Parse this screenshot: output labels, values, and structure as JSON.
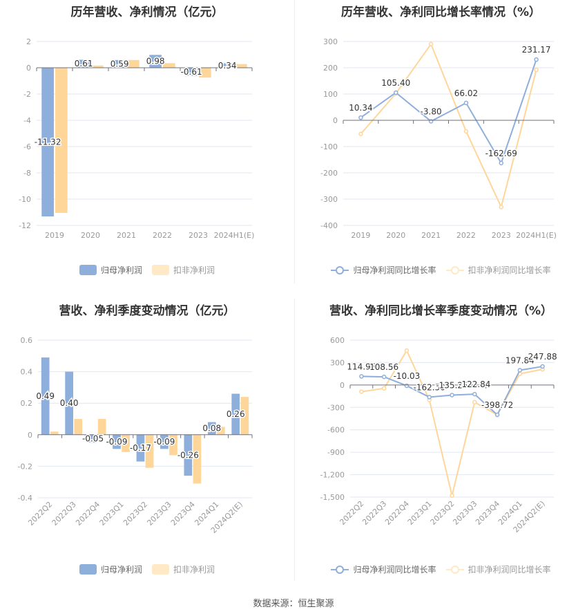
{
  "colors": {
    "series1": "#8eaedc",
    "series2": "#ffd699",
    "series2_light": "#ffe9c6",
    "grid": "#e0e6f1",
    "axis": "#6e7079",
    "tick_text": "#999999",
    "title": "#333333"
  },
  "panels": [
    {
      "title": "历年营收、净利情况（亿元）"
    },
    {
      "title": "历年营收、净利同比增长率情况（%）"
    },
    {
      "title": "营收、净利季度变动情况（亿元）"
    },
    {
      "title": "营收、净利同比增长率季度变动情况（%）"
    }
  ],
  "legends": {
    "bar": [
      "归母净利润",
      "扣非净利润"
    ],
    "line": [
      "归母净利润同比增长率",
      "扣非净利润同比增长率"
    ]
  },
  "footer": "数据来源：恒生聚源",
  "chart_data": [
    {
      "type": "bar",
      "title": "历年营收、净利情况（亿元）",
      "categories": [
        "2019",
        "2020",
        "2021",
        "2022",
        "2023",
        "2024H1(E)"
      ],
      "series": [
        {
          "name": "归母净利润",
          "values": [
            -11.32,
            0.61,
            0.59,
            0.98,
            -0.61,
            0.34
          ],
          "labels": [
            "-11.32",
            "0.61",
            "0.59",
            "0.98",
            "-0.61",
            "0.34"
          ]
        },
        {
          "name": "扣非净利润",
          "values": [
            -11.05,
            0.17,
            0.59,
            0.35,
            -0.75,
            0.28
          ]
        }
      ],
      "yticks": [
        2,
        0,
        -2,
        -4,
        -6,
        -8,
        -10,
        -12
      ],
      "ylim": [
        -12,
        2
      ],
      "grid": true,
      "legend_position": "bottom"
    },
    {
      "type": "line",
      "title": "历年营收、净利同比增长率情况（%）",
      "categories": [
        "2019",
        "2020",
        "2021",
        "2022",
        "2023",
        "2024H1(E)"
      ],
      "series": [
        {
          "name": "归母净利润同比增长率",
          "values": [
            10.34,
            105.4,
            -3.8,
            66.02,
            -162.69,
            231.17
          ],
          "labels": [
            "10.34",
            "105.40",
            "-3.80",
            "66.02",
            "-162.69",
            "231.17"
          ]
        },
        {
          "name": "扣非净利润同比增长率",
          "values": [
            -52,
            102,
            290,
            -42,
            -330,
            192
          ]
        }
      ],
      "yticks": [
        300,
        200,
        100,
        0,
        -100,
        -200,
        -300,
        -400
      ],
      "ylim": [
        -400,
        300
      ],
      "grid": true,
      "legend_position": "bottom"
    },
    {
      "type": "bar",
      "title": "营收、净利季度变动情况（亿元）",
      "categories": [
        "2022Q2",
        "2022Q3",
        "2022Q4",
        "2023Q1",
        "2023Q2",
        "2023Q3",
        "2023Q4",
        "2024Q1",
        "2024Q2(E)"
      ],
      "series": [
        {
          "name": "归母净利润",
          "values": [
            0.49,
            0.4,
            -0.05,
            -0.09,
            -0.17,
            -0.09,
            -0.26,
            0.08,
            0.26
          ],
          "labels": [
            "0.49",
            "0.40",
            "-0.05",
            "-0.09",
            "-0.17",
            "-0.09",
            "-0.26",
            "0.08",
            "0.26"
          ]
        },
        {
          "name": "扣非净利润",
          "values": [
            0.02,
            0.1,
            0.1,
            -0.11,
            -0.21,
            -0.13,
            -0.31,
            0.05,
            0.24
          ]
        }
      ],
      "yticks": [
        0.6,
        0.4,
        0.2,
        0,
        -0.2,
        -0.4
      ],
      "ylim": [
        -0.4,
        0.6
      ],
      "grid": true,
      "legend_position": "bottom"
    },
    {
      "type": "line",
      "title": "营收、净利同比增长率季度变动情况（%）",
      "categories": [
        "2022Q2",
        "2022Q3",
        "2022Q4",
        "2023Q1",
        "2023Q2",
        "2023Q3",
        "2023Q4",
        "2024Q1",
        "2024Q2(E)"
      ],
      "series": [
        {
          "name": "归母净利润同比增长率",
          "values": [
            114.95,
            108.56,
            -10.03,
            -162.5,
            -135.25,
            -122.84,
            -398.72,
            197.84,
            247.88
          ],
          "labels": [
            "114.95",
            "108.56",
            "-10.03",
            "-162.50",
            "-135.25",
            "-122.84",
            "-398.72",
            "197.84",
            "247.88"
          ]
        },
        {
          "name": "扣非净利润同比增长率",
          "values": [
            -90,
            -45,
            460,
            -200,
            -1480,
            -230,
            -400,
            150,
            210
          ]
        }
      ],
      "yticks": [
        "600",
        "300",
        "0",
        "-300",
        "-600",
        "-900",
        "-1,200",
        "-1,500"
      ],
      "ylim": [
        -1500,
        600
      ],
      "grid": true,
      "legend_position": "bottom"
    }
  ]
}
